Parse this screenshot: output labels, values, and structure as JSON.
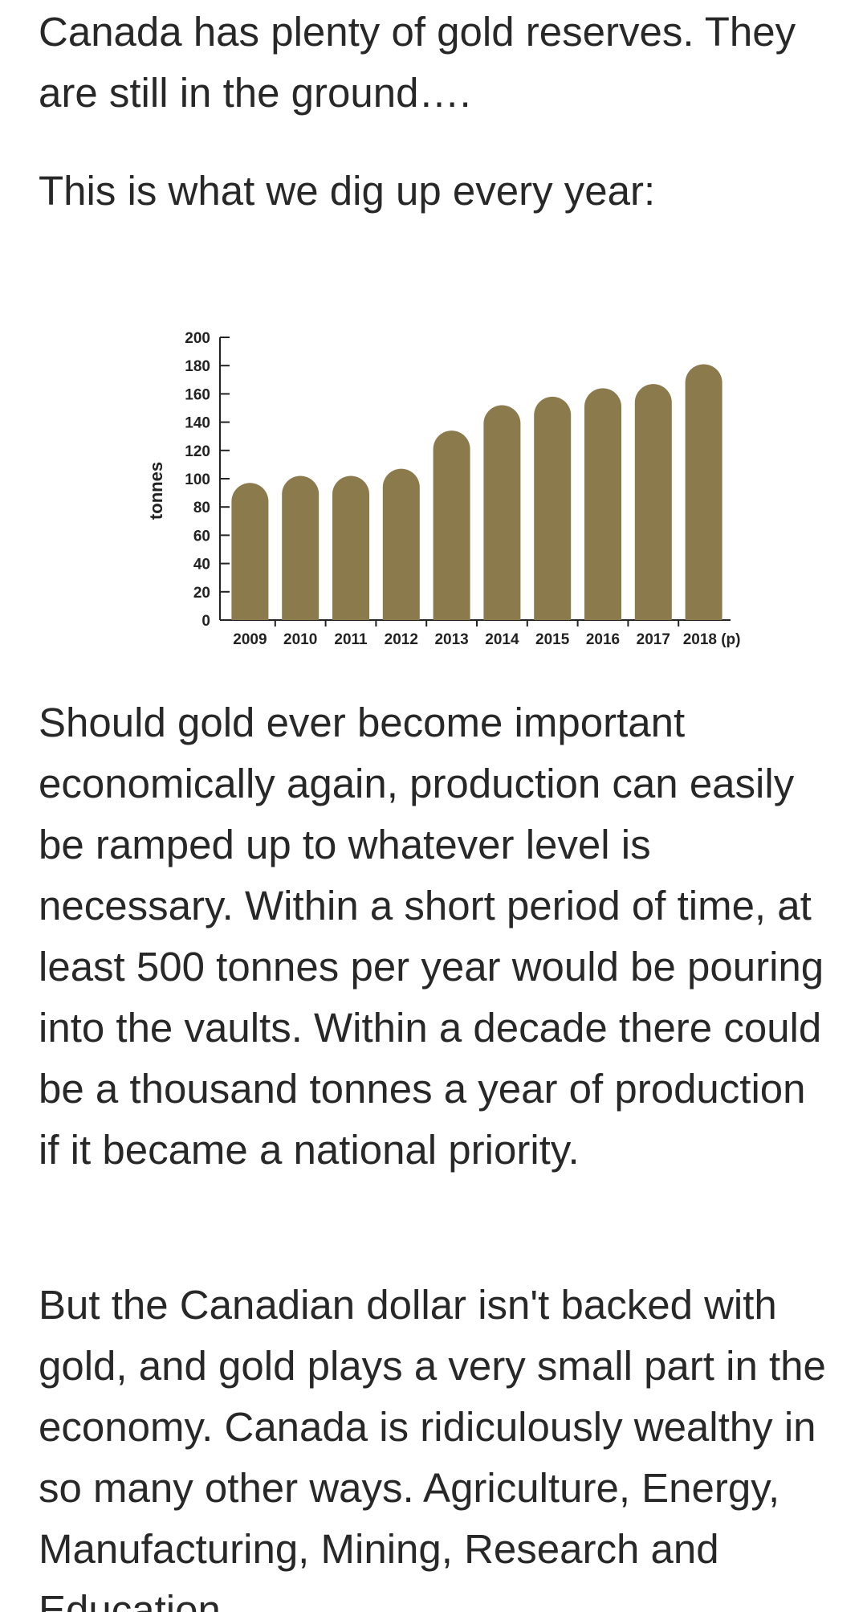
{
  "article": {
    "paragraphs": [
      "Canada has plenty of gold reserves. They are still in the ground….",
      "This is what we dig up every year:",
      "Should gold ever become important economically again, production can easily be ramped up to whatever level is necessary. Within a short period of time, at least 500 tonnes per year would be pouring into the vaults. Within a decade there could be a thousand tonnes a year of production if it became a national priority.",
      "But the Canadian dollar isn't backed with gold, and gold plays a very small part in the economy. Canada is ridiculously wealthy in so many other ways. Agriculture, Energy, Manufacturing, Mining, Research and Education"
    ]
  },
  "chart_data": {
    "type": "bar",
    "categories": [
      "2009",
      "2010",
      "2011",
      "2012",
      "2013",
      "2014",
      "2015",
      "2016",
      "2017",
      "2018 (p)"
    ],
    "values": [
      97,
      102,
      102,
      107,
      134,
      152,
      158,
      164,
      167,
      181
    ],
    "title": "",
    "xlabel": "",
    "ylabel": "tonnes",
    "ylim": [
      0,
      200
    ],
    "yticks": [
      0,
      20,
      40,
      60,
      80,
      100,
      120,
      140,
      160,
      180,
      200
    ],
    "bar_color": "#8b7a4c",
    "grid": false
  }
}
